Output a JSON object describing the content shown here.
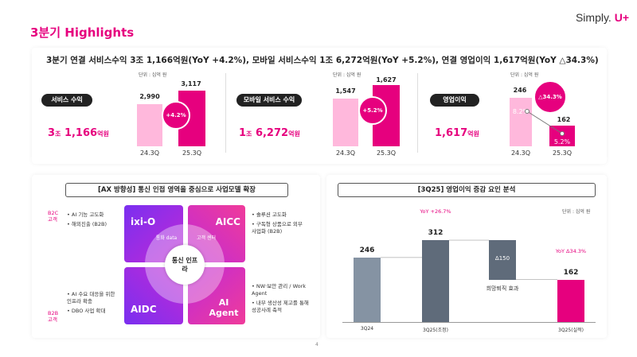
{
  "header": {
    "title": "3분기 Highlights",
    "logo_text": "Simply.",
    "logo_accent": "U+"
  },
  "summary": "3분기 연결 서비스수익 3조 1,166억원(YoY +4.2%), 모바일 서비스수익 1조 6,272억원(YoY +5.2%), 연결 영업이익 1,617억원(YoY △34.3%)",
  "metrics": [
    {
      "label": "서비스 수익",
      "value_main": "3",
      "value_unit1": "조",
      "value_rest": " 1,166",
      "value_unit2": "억원",
      "unit": "단위 : 십억 원",
      "prev_label": "24.3Q",
      "cur_label": "25.3Q",
      "prev_value": "2,990",
      "cur_value": "3,117",
      "growth": "+4.2%"
    },
    {
      "label": "모바일 서비스 수익",
      "value_main": "1",
      "value_unit1": "조",
      "value_rest": " 6,272",
      "value_unit2": "억원",
      "unit": "단위 : 십억 원",
      "prev_label": "24.3Q",
      "cur_label": "25.3Q",
      "prev_value": "1,547",
      "cur_value": "1,627",
      "growth": "+5.2%"
    },
    {
      "label": "영업이익",
      "value_main": "1,617",
      "value_unit1": "억원",
      "unit": "단위 : 십억 원",
      "prev_label": "24.3Q",
      "cur_label": "25.3Q",
      "prev_value": "246",
      "cur_value": "162",
      "growth": "△34.3%",
      "prev_margin": "8.2%",
      "cur_margin": "5.2%"
    }
  ],
  "ax": {
    "title": "[AX 방향성] 통신 인접 영역을 중심으로 사업모델 확장",
    "b2c_label": [
      "B2C",
      "고객"
    ],
    "b2b_label": [
      "B2B",
      "고객"
    ],
    "quadrants": {
      "tl": "ixi-O",
      "tr": "AICC",
      "bl": "AIDC",
      "br": "AI Agent"
    },
    "inner": {
      "tl": "통화 data",
      "tr": "고객 센터"
    },
    "center": "통신 인프라",
    "notes_tl": [
      "• AI 기능 고도화",
      "• 해외진출 (B2B)"
    ],
    "notes_tr": [
      "• 솔루션 고도화",
      "• 구독형 상품으로 외부 사업화 (B2B)"
    ],
    "notes_bl": [
      "• AI 수요 대응을 위한 인프라 확충",
      "• DBO 사업 확대"
    ],
    "notes_br": [
      "• NW·보안 관리 / Work Agent",
      "• 내부 생산성 제고를 통해 성공사례 축적"
    ]
  },
  "waterfall": {
    "title": "[3Q25] 영업이익 증감 요인 분석",
    "unit": "단위 : 십억 원",
    "bars": [
      {
        "label": "3Q24",
        "value": 246
      },
      {
        "label": "3Q25(조정)",
        "value": 312,
        "note": "YoY +26.7%"
      },
      {
        "label": "희망퇴직 효과",
        "value": -150,
        "display": "Δ150"
      },
      {
        "label": "3Q25(실적)",
        "value": 162,
        "note": "YoY Δ34.3%"
      }
    ]
  },
  "page_number": "4",
  "colors": {
    "accent": "#e6007e",
    "light": "#ffb8dc",
    "grey": "#8593a3",
    "dark_grey": "#5f6b7a"
  }
}
